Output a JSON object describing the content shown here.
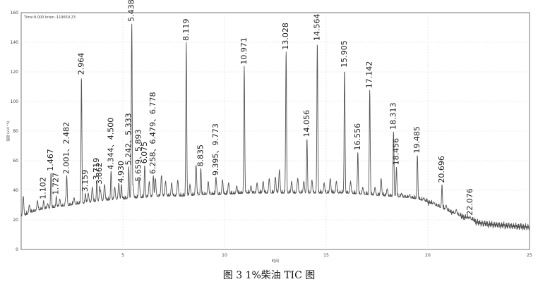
{
  "chart_data": {
    "type": "line",
    "header_text": "Time:9.000  Inten.:119659.23",
    "xlabel": "时间",
    "ylabel": "强度 (x10^5)",
    "xlim": [
      0,
      25
    ],
    "ylim": [
      0,
      160
    ],
    "x_ticks": [
      5,
      10,
      15,
      20,
      25
    ],
    "y_ticks": [
      0,
      20,
      40,
      60,
      80,
      100,
      120,
      140,
      160
    ],
    "grid": true,
    "caption": "图  3 1%柴油 TIC 图",
    "series": [
      {
        "color": "#555555",
        "baseline": [
          [
            0.0,
            22
          ],
          [
            0.5,
            25
          ],
          [
            1.0,
            27
          ],
          [
            1.5,
            28
          ],
          [
            2.0,
            29
          ],
          [
            2.5,
            30
          ],
          [
            3.0,
            31
          ],
          [
            4.0,
            33
          ],
          [
            5.0,
            34
          ],
          [
            6.0,
            35
          ],
          [
            7.0,
            36
          ],
          [
            8.0,
            36
          ],
          [
            9.0,
            37
          ],
          [
            10.0,
            37
          ],
          [
            11.0,
            38
          ],
          [
            12.0,
            38
          ],
          [
            13.0,
            38
          ],
          [
            14.0,
            38
          ],
          [
            15.0,
            38
          ],
          [
            16.0,
            38
          ],
          [
            17.0,
            37
          ],
          [
            18.0,
            36
          ],
          [
            19.0,
            35
          ],
          [
            19.5,
            34
          ],
          [
            20.0,
            32
          ],
          [
            20.5,
            29
          ],
          [
            21.0,
            26
          ],
          [
            21.5,
            23
          ],
          [
            22.0,
            21
          ],
          [
            22.5,
            18
          ],
          [
            23.0,
            17
          ],
          [
            24.0,
            16
          ],
          [
            25.0,
            15
          ]
        ],
        "noise": [
          [
            0.1,
            36
          ],
          [
            0.4,
            30
          ],
          [
            0.8,
            33
          ],
          [
            1.3,
            31
          ],
          [
            1.9,
            34
          ],
          [
            2.2,
            36
          ],
          [
            2.6,
            35
          ],
          [
            3.3,
            38
          ],
          [
            3.5,
            42
          ],
          [
            3.9,
            40
          ],
          [
            4.1,
            44
          ],
          [
            4.6,
            42
          ],
          [
            4.8,
            45
          ],
          [
            5.5,
            44
          ],
          [
            5.8,
            48
          ],
          [
            6.3,
            46
          ],
          [
            6.6,
            48
          ],
          [
            6.9,
            50
          ],
          [
            7.1,
            46
          ],
          [
            7.4,
            45
          ],
          [
            7.7,
            47
          ],
          [
            8.3,
            44
          ],
          [
            8.6,
            57
          ],
          [
            9.2,
            46
          ],
          [
            9.6,
            44
          ],
          [
            9.9,
            47
          ],
          [
            10.2,
            45
          ],
          [
            10.6,
            43
          ],
          [
            11.3,
            43
          ],
          [
            11.6,
            45
          ],
          [
            11.9,
            46
          ],
          [
            12.2,
            48
          ],
          [
            12.5,
            49
          ],
          [
            12.7,
            54
          ],
          [
            13.3,
            46
          ],
          [
            13.6,
            48
          ],
          [
            13.9,
            46
          ],
          [
            14.3,
            47
          ],
          [
            14.9,
            45
          ],
          [
            15.2,
            48
          ],
          [
            15.5,
            46
          ],
          [
            16.2,
            46
          ],
          [
            16.8,
            42
          ],
          [
            17.4,
            42
          ],
          [
            17.7,
            48
          ],
          [
            18.0,
            41
          ],
          [
            18.7,
            38
          ],
          [
            19.1,
            37
          ],
          [
            19.8,
            35
          ],
          [
            20.3,
            32
          ],
          [
            20.9,
            30
          ],
          [
            21.4,
            27
          ]
        ],
        "peaks": [
          {
            "label": "1.102",
            "rt": 1.102,
            "height": 33
          },
          {
            "label": "1.467",
            "rt": 1.467,
            "height": 52
          },
          {
            "label": "1.727",
            "rt": 1.727,
            "height": 36
          },
          {
            "label": "2.001、2.482",
            "rt": 2.24,
            "height": 50
          },
          {
            "label": "2.964",
            "rt": 2.964,
            "height": 117
          },
          {
            "label": "3.159",
            "rt": 3.159,
            "height": 38
          },
          {
            "label": "3.719",
            "rt": 3.719,
            "height": 46
          },
          {
            "label": "3.862",
            "rt": 3.862,
            "height": 43
          },
          {
            "label": "4.344、4.500",
            "rt": 4.42,
            "height": 53
          },
          {
            "label": "4.930",
            "rt": 4.93,
            "height": 44
          },
          {
            "label": "5.242、5.333",
            "rt": 5.29,
            "height": 56
          },
          {
            "label": "5.438",
            "rt": 5.438,
            "height": 153
          },
          {
            "label": "5.659、5.893",
            "rt": 5.78,
            "height": 45
          },
          {
            "label": "6.075",
            "rt": 6.075,
            "height": 57
          },
          {
            "label": "6.258、6.479、6.778",
            "rt": 6.5,
            "height": 50
          },
          {
            "label": "8.119",
            "rt": 8.119,
            "height": 140
          },
          {
            "label": "8.835",
            "rt": 8.835,
            "height": 55
          },
          {
            "label": "9.395、9.773",
            "rt": 9.58,
            "height": 49
          },
          {
            "label": "10.971",
            "rt": 10.971,
            "height": 124
          },
          {
            "label": "13.028",
            "rt": 13.028,
            "height": 134
          },
          {
            "label": "14.056",
            "rt": 14.056,
            "height": 75
          },
          {
            "label": "14.564",
            "rt": 14.564,
            "height": 140
          },
          {
            "label": "15.905",
            "rt": 15.905,
            "height": 122
          },
          {
            "label": "16.556",
            "rt": 16.556,
            "height": 66
          },
          {
            "label": "17.142",
            "rt": 17.142,
            "height": 108
          },
          {
            "label": "18.313",
            "rt": 18.313,
            "height": 80
          },
          {
            "label": "18.456",
            "rt": 18.456,
            "height": 56
          },
          {
            "label": "19.485",
            "rt": 19.485,
            "height": 64
          },
          {
            "label": "20.696",
            "rt": 20.696,
            "height": 44
          },
          {
            "label": "22.076",
            "rt": 22.076,
            "height": 22
          }
        ]
      }
    ]
  }
}
